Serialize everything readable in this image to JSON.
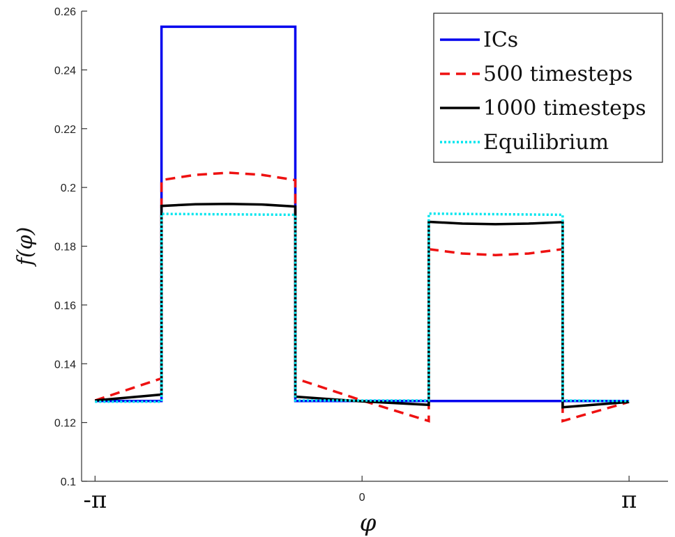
{
  "chart_data": {
    "type": "line",
    "title": "",
    "xlabel": "φ",
    "ylabel": "f(φ)",
    "xlim": [
      -3.3,
      3.6
    ],
    "ylim": [
      0.1,
      0.26
    ],
    "x_ticks": [
      {
        "value": -3.14159,
        "label": "-π"
      },
      {
        "value": 0,
        "label": "0"
      },
      {
        "value": 3.14159,
        "label": "π"
      }
    ],
    "y_ticks": [
      0.1,
      0.12,
      0.14,
      0.16,
      0.18,
      0.2,
      0.22,
      0.24,
      0.26
    ],
    "grid": false,
    "legend_position": "top-right",
    "series": [
      {
        "name": "ICs",
        "color": "#0000ee",
        "style": "solid",
        "x": [
          -3.14159,
          -2.36,
          -2.36,
          -0.785,
          -0.785,
          0.785,
          0.785,
          2.36,
          2.36,
          3.14159
        ],
        "y": [
          0.1273,
          0.1273,
          0.2547,
          0.2547,
          0.1273,
          0.1273,
          0.1273,
          0.1273,
          0.1273,
          0.1273
        ]
      },
      {
        "name": "500 timesteps",
        "color": "#ee1111",
        "style": "dashed",
        "x": [
          -3.14159,
          -2.36,
          -2.36,
          -1.96,
          -1.57,
          -1.18,
          -0.785,
          -0.785,
          0.0,
          0.785,
          0.785,
          1.18,
          1.57,
          1.96,
          2.36,
          2.36,
          3.14159
        ],
        "y": [
          0.1275,
          0.135,
          0.2025,
          0.2043,
          0.205,
          0.2043,
          0.2025,
          0.135,
          0.1275,
          0.1205,
          0.179,
          0.1775,
          0.177,
          0.1775,
          0.179,
          0.1205,
          0.127
        ]
      },
      {
        "name": "1000 timesteps",
        "color": "#000000",
        "style": "solid",
        "x": [
          -3.14159,
          -2.36,
          -2.36,
          -1.96,
          -1.57,
          -1.18,
          -0.785,
          -0.785,
          0.0,
          0.785,
          0.785,
          1.18,
          1.57,
          1.96,
          2.36,
          2.36,
          3.14159
        ],
        "y": [
          0.1275,
          0.1295,
          0.1937,
          0.1943,
          0.1944,
          0.1942,
          0.1935,
          0.1288,
          0.1272,
          0.126,
          0.1883,
          0.1877,
          0.1875,
          0.1877,
          0.1882,
          0.1252,
          0.127
        ]
      },
      {
        "name": "Equilibrium",
        "color": "#00e5ee",
        "style": "dotted",
        "x": [
          -3.14159,
          -2.36,
          -2.36,
          -0.785,
          -0.785,
          0.785,
          0.785,
          2.36,
          2.36,
          3.14159
        ],
        "y": [
          0.1271,
          0.1271,
          0.191,
          0.1907,
          0.1275,
          0.1275,
          0.1911,
          0.1907,
          0.1275,
          0.1273
        ]
      }
    ]
  }
}
